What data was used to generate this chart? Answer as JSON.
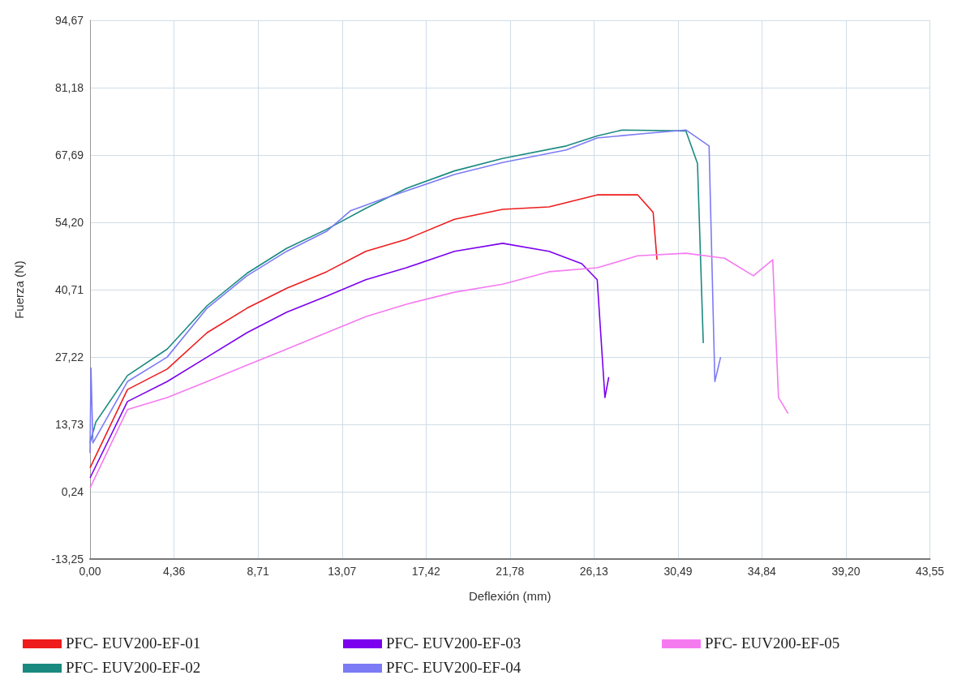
{
  "chart_data": {
    "type": "line",
    "xlabel": "Deflexión (mm)",
    "ylabel": "Fuerza (N)",
    "xlim": [
      0,
      43.55
    ],
    "ylim": [
      -13.25,
      94.67
    ],
    "xticks": [
      {
        "value": 0,
        "label": "0,00"
      },
      {
        "value": 4.36,
        "label": "4,36"
      },
      {
        "value": 8.71,
        "label": "8,71"
      },
      {
        "value": 13.07,
        "label": "13,07"
      },
      {
        "value": 17.42,
        "label": "17,42"
      },
      {
        "value": 21.78,
        "label": "21,78"
      },
      {
        "value": 26.13,
        "label": "26,13"
      },
      {
        "value": 30.49,
        "label": "30,49"
      },
      {
        "value": 34.84,
        "label": "34,84"
      },
      {
        "value": 39.2,
        "label": "39,20"
      },
      {
        "value": 43.55,
        "label": "43,55"
      }
    ],
    "yticks": [
      {
        "value": -13.25,
        "label": "-13,25"
      },
      {
        "value": 0.24,
        "label": "0,24"
      },
      {
        "value": 13.73,
        "label": "13,73"
      },
      {
        "value": 27.22,
        "label": "27,22"
      },
      {
        "value": 40.71,
        "label": "40,71"
      },
      {
        "value": 54.2,
        "label": "54,20"
      },
      {
        "value": 67.69,
        "label": "67,69"
      },
      {
        "value": 81.18,
        "label": "81,18"
      },
      {
        "value": 94.67,
        "label": "94,67"
      }
    ],
    "grid": true,
    "legend": "bottom",
    "marker": "none",
    "line_style": "solid",
    "series": [
      {
        "name": "PFC- EUV200-EF-01",
        "color": "#ee1c1c",
        "x": [
          0,
          1.94,
          4.0,
          6.07,
          8.14,
          10.2,
          12.27,
          14.3,
          16.4,
          18.9,
          21.4,
          23.8,
          26.3,
          28.4,
          29.2,
          29.4
        ],
        "values": [
          5,
          20.7,
          24.8,
          32.1,
          37,
          41,
          44.3,
          48.4,
          50.8,
          54.8,
          56.8,
          57.3,
          59.7,
          59.7,
          56.2,
          46.7
        ]
      },
      {
        "name": "PFC- EUV200-EF-02",
        "color": "#1a8a80",
        "x": [
          0,
          0.3,
          1.94,
          4.0,
          6.07,
          8.14,
          10.2,
          12.27,
          14.3,
          16.4,
          18.9,
          21.4,
          24.7,
          26.3,
          27.6,
          30.9,
          31.5,
          31.8
        ],
        "values": [
          10,
          14.2,
          23.5,
          28.8,
          37.5,
          44,
          49,
          52.8,
          57,
          61,
          64.5,
          67,
          69.5,
          71.5,
          72.7,
          72.5,
          66,
          30
        ]
      },
      {
        "name": "PFC- EUV200-EF-03",
        "color": "#7b00ee",
        "x": [
          0,
          1.94,
          4.0,
          6.07,
          8.14,
          10.2,
          12.27,
          14.3,
          16.4,
          18.9,
          21.4,
          23.8,
          25.5,
          26.3,
          26.7,
          26.9
        ],
        "values": [
          3,
          18.3,
          22.3,
          27.2,
          32.1,
          36.2,
          39.4,
          42.7,
          45.1,
          48.4,
          50,
          48.4,
          45.9,
          42.7,
          19.1,
          23.2
        ]
      },
      {
        "name": "PFC- EUV200-EF-04",
        "color": "#7b7bf5",
        "x": [
          0,
          0.05,
          0.15,
          1.94,
          4.0,
          6.07,
          8.14,
          10.2,
          12.27,
          13.5,
          15.2,
          16.4,
          18.9,
          21.4,
          24.7,
          26.3,
          28.8,
          30.9,
          32.1,
          32.4,
          32.7
        ],
        "values": [
          8,
          25,
          10,
          22.3,
          27.2,
          37,
          43.5,
          48.4,
          52.4,
          56.5,
          58.9,
          60.5,
          63.8,
          66.2,
          68.7,
          71.1,
          72,
          72.7,
          69.5,
          22.3,
          27.2
        ]
      },
      {
        "name": "PFC- EUV200-EF-05",
        "color": "#f57af0",
        "x": [
          0,
          1.94,
          4.0,
          6.07,
          8.14,
          10.2,
          12.27,
          14.3,
          16.4,
          18.9,
          21.4,
          23.8,
          26.3,
          28.4,
          30.9,
          32.9,
          34.4,
          35.4,
          35.7,
          36.2
        ],
        "values": [
          1,
          16.7,
          19.1,
          22.3,
          25.6,
          28.8,
          32.1,
          35.3,
          37.8,
          40.2,
          41.8,
          44.3,
          45.1,
          47.5,
          48,
          47,
          43.5,
          46.7,
          19.1,
          15.9
        ]
      }
    ]
  }
}
